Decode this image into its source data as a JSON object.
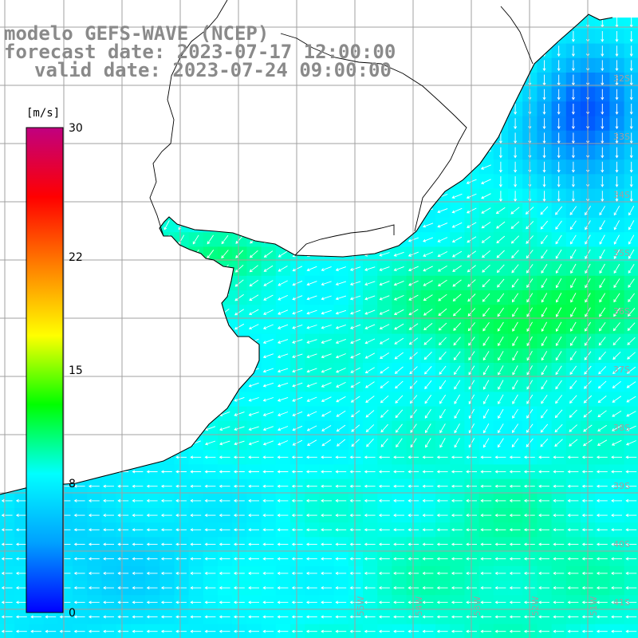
{
  "title": {
    "line1": "modelo GEFS-WAVE (NCEP)",
    "line2": "forecast date: 2023-07-17 12:00:00",
    "line3": "valid date: 2023-07-24 09:00:00"
  },
  "colorbar": {
    "unit": "[m/s]",
    "min": 0,
    "max": 30,
    "ticks": [
      {
        "value": 30,
        "label": "30"
      },
      {
        "value": 22,
        "label": "22"
      },
      {
        "value": 15,
        "label": "15"
      },
      {
        "value": 8,
        "label": "8"
      },
      {
        "value": 0,
        "label": "0"
      }
    ],
    "stops": [
      "#0000ff",
      "#00a0ff",
      "#00ffff",
      "#00ff00",
      "#ffff00",
      "#ff8000",
      "#ff0000",
      "#c00080"
    ]
  },
  "latitude_labels": [
    "32S",
    "33S",
    "34S",
    "35S",
    "36S",
    "37S",
    "38S",
    "39S",
    "40S",
    "41S"
  ],
  "longitude_labels": [
    "55W",
    "54W",
    "53W",
    "52W",
    "51W"
  ],
  "colors": {
    "land": "#ffffff",
    "coast": "#000000",
    "grid": "#a0a0a0",
    "arrow": "#ffffff",
    "title": "#8a8a8a"
  }
}
